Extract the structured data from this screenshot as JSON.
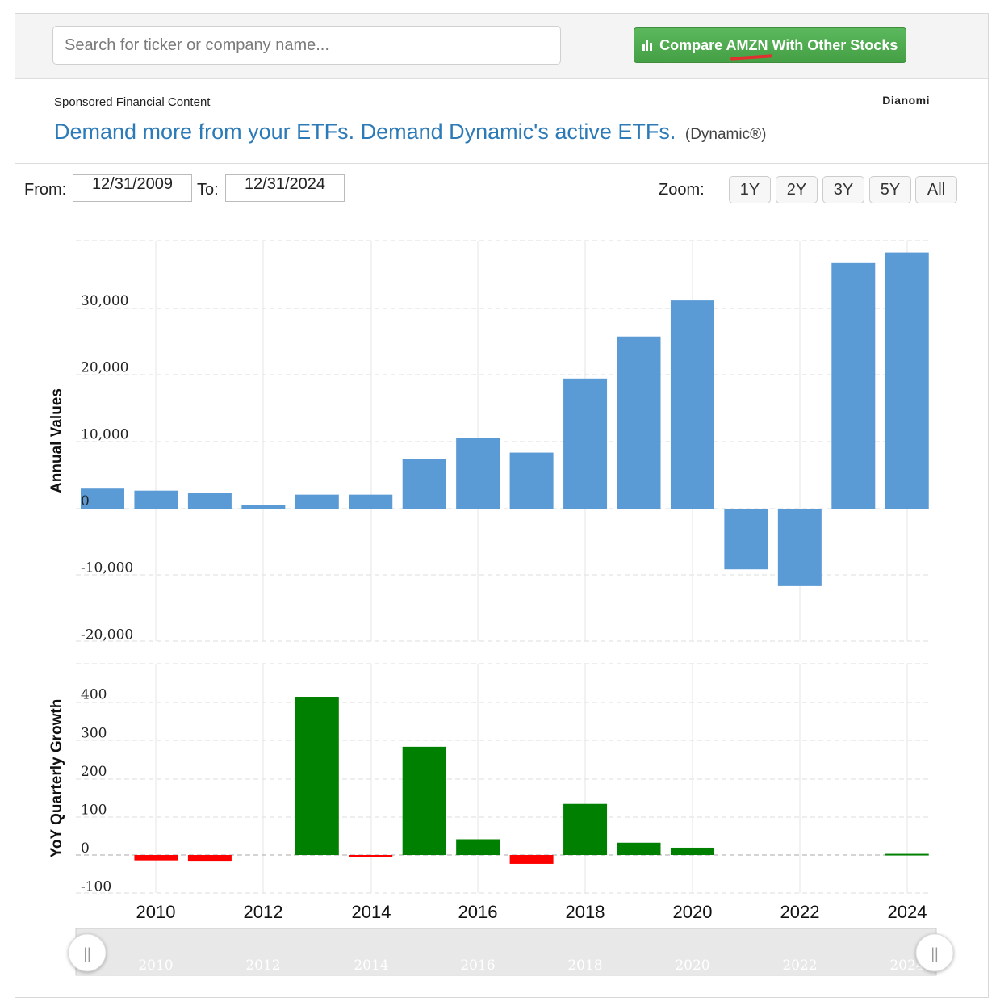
{
  "search": {
    "placeholder": "Search for ticker or company name..."
  },
  "compare_button": {
    "label": "Compare AMZN With Other Stocks"
  },
  "sponsored": {
    "label": "Sponsored Financial Content",
    "brand": "Dianomi",
    "headline": "Demand more from your ETFs. Demand Dynamic's active ETFs.",
    "source": "(Dynamic®)"
  },
  "range": {
    "from_label": "From:",
    "from_value": "12/31/2009",
    "to_label": "To:",
    "to_value": "12/31/2024"
  },
  "zoom": {
    "label": "Zoom:",
    "options": [
      "1Y",
      "2Y",
      "3Y",
      "5Y",
      "All"
    ]
  },
  "colors": {
    "bar": "#5b9bd5",
    "positive": "#008000",
    "negative": "#ff0000"
  },
  "chart_data": [
    {
      "type": "bar",
      "ylabel": "Annual Values",
      "ylim": [
        -20000,
        40000
      ],
      "y_ticks": [
        "30,000",
        "20,000",
        "10,000",
        "0",
        "-10,000",
        "-20,000"
      ],
      "y_tick_values": [
        30000,
        20000,
        10000,
        0,
        -10000,
        -20000
      ],
      "x": [
        2009,
        2010,
        2011,
        2012,
        2013,
        2014,
        2015,
        2016,
        2017,
        2018,
        2019,
        2020,
        2021,
        2022,
        2023,
        2024
      ],
      "values": [
        3000,
        2700,
        2300,
        500,
        2100,
        2100,
        7500,
        10600,
        8400,
        19500,
        25800,
        31200,
        -9100,
        -11600,
        36800,
        38400
      ],
      "grid": true
    },
    {
      "type": "bar",
      "ylabel": "YoY Quarterly Growth",
      "ylim": [
        -100,
        500
      ],
      "y_ticks": [
        "400",
        "300",
        "200",
        "100",
        "0",
        "-100"
      ],
      "y_tick_values": [
        400,
        300,
        200,
        100,
        0,
        -100
      ],
      "x": [
        2009,
        2010,
        2011,
        2012,
        2013,
        2014,
        2015,
        2016,
        2017,
        2018,
        2019,
        2020,
        2021,
        2022,
        2023,
        2024
      ],
      "values": [
        null,
        -14,
        -17,
        null,
        412,
        -3,
        282,
        41,
        -23,
        133,
        32,
        19,
        null,
        null,
        null,
        3
      ],
      "x_ticks": [
        "2010",
        "2012",
        "2014",
        "2016",
        "2018",
        "2020",
        "2022",
        "2024"
      ],
      "grid": true
    }
  ],
  "navigator": {
    "labels": [
      "2010",
      "2012",
      "2014",
      "2016",
      "2018",
      "2020",
      "2022",
      "2024"
    ],
    "handle_glyph": "||"
  }
}
